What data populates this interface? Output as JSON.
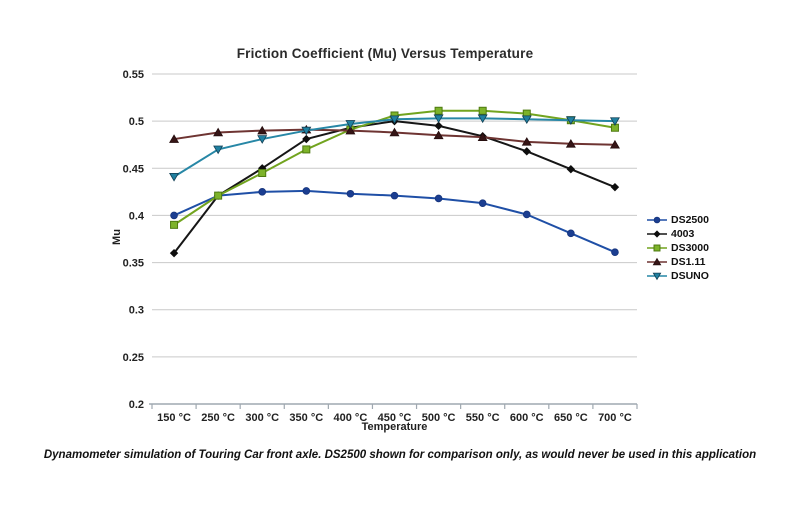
{
  "caption": "Dynamometer simulation of Touring Car front axle. DS2500 shown for comparison only, as would never be used in this application",
  "chart_data": {
    "type": "line",
    "title": "Friction Coefficient (Mu) Versus Temperature",
    "xlabel": "Temperature",
    "ylabel": "Mu",
    "categories": [
      "150 °C",
      "250 °C",
      "300 °C",
      "350 °C",
      "400 °C",
      "450 °C",
      "500 °C",
      "550 °C",
      "600 °C",
      "650 °C",
      "700 °C"
    ],
    "ylim": [
      0.2,
      0.55
    ],
    "y_ticks": [
      "0.55",
      "0.5",
      "0.45",
      "0.4",
      "0.35",
      "0.3",
      "0.25",
      "0.2"
    ],
    "grid": true,
    "legend_position": "right",
    "colors": {
      "gridline": "#c9c9c9",
      "axis": "#9fa8b0",
      "text": "#222222"
    },
    "series": [
      {
        "name": "DS2500",
        "marker": "circle",
        "color": "#1f4fa6",
        "marker_color": "#1b3e91",
        "marker_border": "#16347c",
        "values": [
          0.4,
          0.421,
          0.425,
          0.426,
          0.423,
          0.421,
          0.418,
          0.413,
          0.401,
          0.381,
          0.361
        ]
      },
      {
        "name": "4003",
        "marker": "diamond",
        "color": "#161616",
        "marker_color": "#0e0e0e",
        "marker_border": "#0e0e0e",
        "values": [
          0.36,
          0.421,
          0.45,
          0.481,
          0.493,
          0.5,
          0.495,
          0.484,
          0.468,
          0.449,
          0.43
        ]
      },
      {
        "name": "DS3000",
        "marker": "square",
        "color": "#72a41f",
        "marker_color": "#7db32a",
        "marker_border": "#4e7a10",
        "values": [
          0.39,
          0.421,
          0.445,
          0.47,
          0.491,
          0.506,
          0.511,
          0.511,
          0.508,
          0.501,
          0.493
        ]
      },
      {
        "name": "DS1.11",
        "marker": "triangle-up",
        "color": "#6e3432",
        "marker_color": "#361516",
        "marker_border": "#240d0e",
        "values": [
          0.481,
          0.488,
          0.49,
          0.491,
          0.49,
          0.488,
          0.485,
          0.483,
          0.478,
          0.476,
          0.475
        ]
      },
      {
        "name": "DSUNO",
        "marker": "triangle-down",
        "color": "#2787a6",
        "marker_color": "#2080a0",
        "marker_border": "#123f54",
        "values": [
          0.441,
          0.47,
          0.481,
          0.49,
          0.497,
          0.502,
          0.503,
          0.503,
          0.502,
          0.501,
          0.5
        ]
      }
    ]
  }
}
